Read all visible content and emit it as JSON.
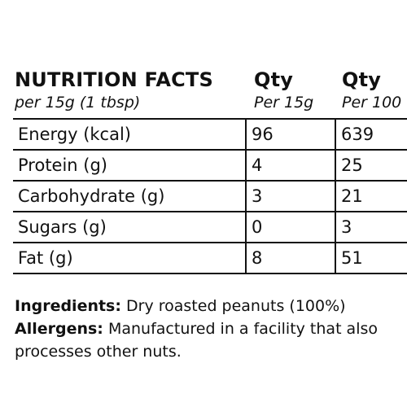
{
  "header": {
    "title": "NUTRITION FACTS",
    "subtitle": "per 15g (1 tbsp)",
    "columns": [
      {
        "title": "Qty",
        "subtitle": "Per 15g"
      },
      {
        "title": "Qty",
        "subtitle": "Per 100"
      }
    ]
  },
  "rows": [
    {
      "nutrient": "Energy (kcal)",
      "per_15g": "96",
      "per_100g": "639"
    },
    {
      "nutrient": "Protein (g)",
      "per_15g": "4",
      "per_100g": "25"
    },
    {
      "nutrient": "Carbohydrate (g)",
      "per_15g": "3",
      "per_100g": "21"
    },
    {
      "nutrient": "Sugars (g)",
      "per_15g": "0",
      "per_100g": "3"
    },
    {
      "nutrient": "Fat (g)",
      "per_15g": "8",
      "per_100g": "51"
    }
  ],
  "ingredients": {
    "label": "Ingredients:",
    "text": "Dry roasted peanuts (100%)"
  },
  "allergens": {
    "label": "Allergens:",
    "text": "Manufactured in a facility that also processes other nuts."
  }
}
